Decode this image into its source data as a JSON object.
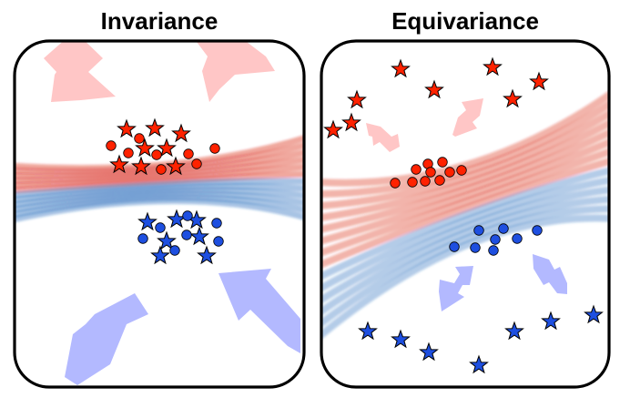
{
  "panels": {
    "left": {
      "title": "Invariance"
    },
    "right": {
      "title": "Equivariance"
    }
  },
  "colors": {
    "frame": "#000000",
    "red_class": "#ff2200",
    "blue_class": "#1e4fe0",
    "red_arrow": "#ffc6c6",
    "blue_arrow": "#b3b9ff",
    "red_band": "#d81e10",
    "blue_band": "#1a63b8"
  },
  "icons": {
    "star": "star-icon",
    "circle": "circle-icon",
    "arrow": "arrow-icon",
    "double_arrow": "double-arrow-icon"
  }
}
